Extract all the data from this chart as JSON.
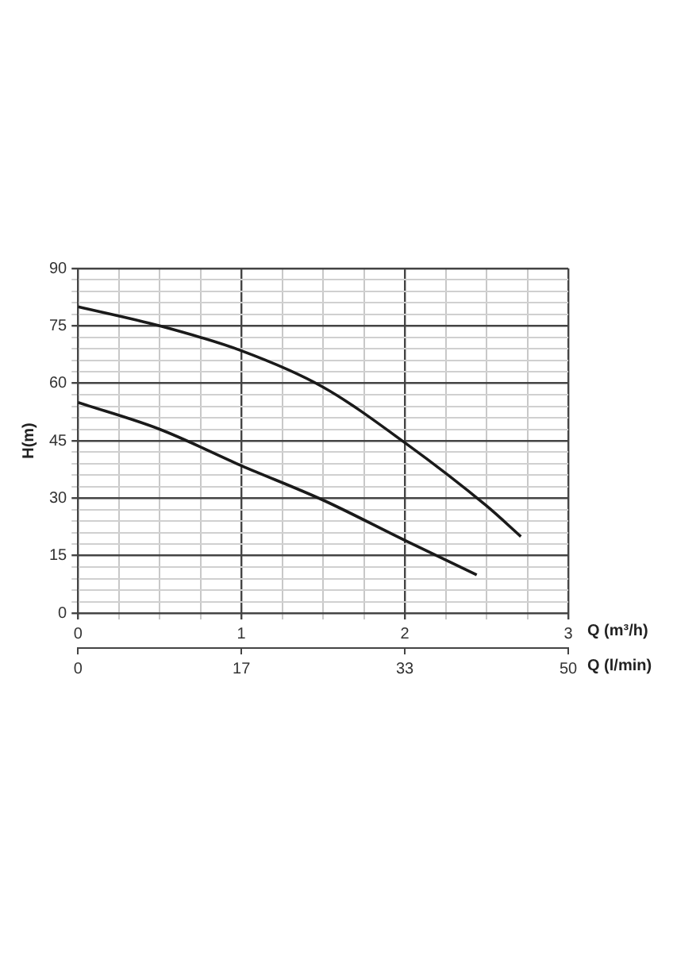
{
  "chart_data": {
    "type": "line",
    "xlabel": "Q (m³/h)",
    "x2label": "Q (l/min)",
    "ylabel": "H(m)",
    "xlim": [
      0,
      3
    ],
    "xticks": [
      0,
      {
        "value": 0.25,
        "label": null
      },
      {
        "value": 0.5,
        "label": null
      },
      {
        "value": 0.75,
        "label": null
      },
      1,
      {
        "value": 1.25,
        "label": null
      },
      {
        "value": 1.5,
        "label": null
      },
      {
        "value": 1.75,
        "label": null
      },
      2,
      {
        "value": 2.25,
        "label": null
      },
      {
        "value": 2.5,
        "label": null
      },
      {
        "value": 2.75,
        "label": null
      },
      3
    ],
    "x2lim": [
      0,
      50
    ],
    "x2ticks": [
      0,
      {
        "value": 16.667,
        "label": "17"
      },
      {
        "value": 33.333,
        "label": "33"
      },
      50
    ],
    "ylim": [
      0,
      90
    ],
    "yticks": [
      0,
      {
        "value": 3,
        "label": null
      },
      {
        "value": 6,
        "label": null
      },
      {
        "value": 9,
        "label": null
      },
      {
        "value": 12,
        "label": null
      },
      15,
      {
        "value": 18,
        "label": null
      },
      {
        "value": 21,
        "label": null
      },
      {
        "value": 24,
        "label": null
      },
      {
        "value": 27,
        "label": null
      },
      30,
      {
        "value": 33,
        "label": null
      },
      {
        "value": 36,
        "label": null
      },
      {
        "value": 39,
        "label": null
      },
      {
        "value": 42,
        "label": null
      },
      45,
      {
        "value": 48,
        "label": null
      },
      {
        "value": 51,
        "label": null
      },
      {
        "value": 54,
        "label": null
      },
      {
        "value": 57,
        "label": null
      },
      60,
      {
        "value": 63,
        "label": null
      },
      {
        "value": 66,
        "label": null
      },
      {
        "value": 69,
        "label": null
      },
      {
        "value": 72,
        "label": null
      },
      75,
      {
        "value": 78,
        "label": null
      },
      {
        "value": 81,
        "label": null
      },
      {
        "value": 84,
        "label": null
      },
      {
        "value": 87,
        "label": null
      },
      90
    ],
    "grid": true,
    "legend": false,
    "marker": "none",
    "line_style": "solid",
    "series": [
      {
        "color": "#1a1a1a",
        "x": [
          0,
          0.5,
          1,
          1.5,
          2,
          2.5,
          2.71
        ],
        "values": [
          80,
          75,
          68.5,
          59,
          44.5,
          28,
          20
        ]
      },
      {
        "color": "#1a1a1a",
        "x": [
          0,
          0.5,
          1,
          1.5,
          2,
          2.44
        ],
        "values": [
          55,
          48,
          38.5,
          29.5,
          19,
          10
        ]
      }
    ]
  }
}
